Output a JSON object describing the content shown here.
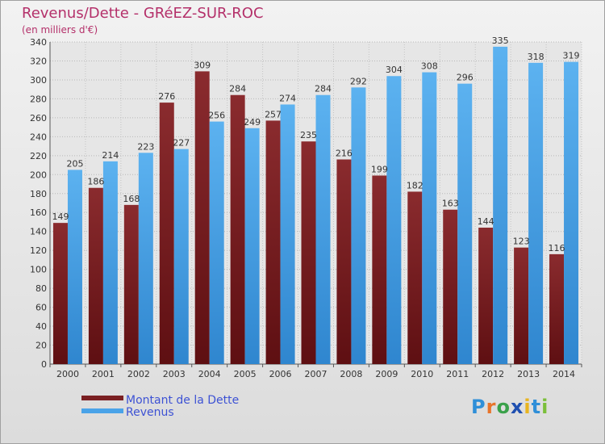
{
  "header": {
    "title": "Revenus/Dette - GRéEZ-SUR-ROC",
    "subtitle": "(en milliers d'€)"
  },
  "logo": {
    "text": "Proxiti"
  },
  "colors": {
    "debt": "#7a1f22",
    "revenue": "#4aa3e8",
    "title": "#b4306a",
    "legend_text": "#3d52d4"
  },
  "chart_data": {
    "type": "bar",
    "title": "Revenus/Dette - GRéEZ-SUR-ROC",
    "subtitle": "(en milliers d'€)",
    "xlabel": "",
    "ylabel": "",
    "categories": [
      "2000",
      "2001",
      "2002",
      "2003",
      "2004",
      "2005",
      "2006",
      "2007",
      "2008",
      "2009",
      "2010",
      "2011",
      "2012",
      "2013",
      "2014"
    ],
    "series": [
      {
        "name": "Montant de la Dette",
        "values": [
          149,
          186,
          168,
          276,
          309,
          284,
          257,
          235,
          216,
          199,
          182,
          163,
          144,
          123,
          116
        ]
      },
      {
        "name": "Revenus",
        "values": [
          205,
          214,
          223,
          227,
          256,
          249,
          274,
          284,
          292,
          304,
          308,
          296,
          335,
          318,
          319
        ]
      }
    ],
    "ylim": [
      0,
      340
    ],
    "ytick_step": 20,
    "grid": true,
    "legend": "bottom-left"
  }
}
